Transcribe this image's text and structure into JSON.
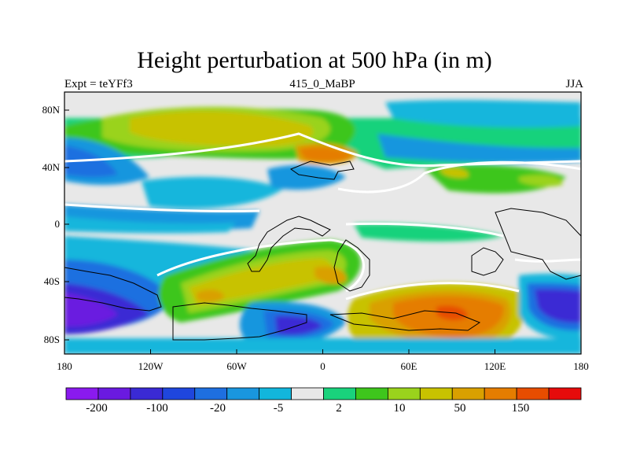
{
  "title": "Height perturbation at 500 hPa (in m)",
  "subtitle_left": "Expt = teYFf3",
  "subtitle_center": "415_0_MaBP",
  "subtitle_right": "JJA",
  "chart_data": {
    "type": "heatmap",
    "variable": "Height perturbation at 500 hPa",
    "units": "m",
    "xlim": [
      -180,
      180
    ],
    "ylim": [
      -90,
      90
    ],
    "x_ticks": [
      "180",
      "120W",
      "60W",
      "0",
      "60E",
      "120E",
      "180"
    ],
    "y_ticks": [
      "80N",
      "40N",
      "0",
      "40S",
      "80S"
    ],
    "colorbar_labels": [
      "-200",
      "-100",
      "-20",
      "-5",
      "2",
      "10",
      "50",
      "150"
    ],
    "colorbar_colors": [
      "#8a1aee",
      "#6a1ae0",
      "#3a2ad4",
      "#1f46dd",
      "#1e6fe0",
      "#1996de",
      "#12b6dc",
      "#e8e8e8",
      "#19d27c",
      "#3ec61c",
      "#9ad31c",
      "#c8c200",
      "#d9a000",
      "#e57d00",
      "#e74d00",
      "#e60b0b"
    ]
  }
}
